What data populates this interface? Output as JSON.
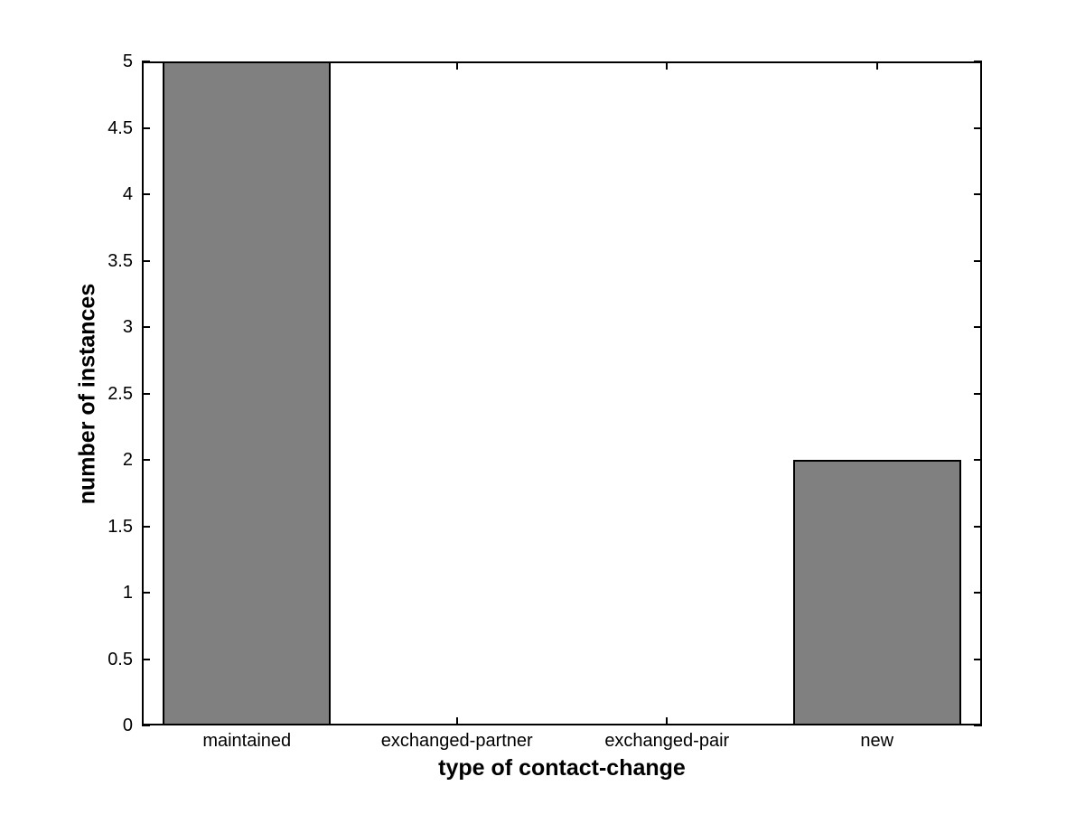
{
  "chart_data": {
    "type": "bar",
    "title": "",
    "categories": [
      "maintained",
      "exchanged-partner",
      "exchanged-pair",
      "new"
    ],
    "values": [
      5,
      0,
      0,
      2
    ],
    "xlabel": "type of contact-change",
    "ylabel": "number of instances",
    "ylim": [
      0,
      5
    ],
    "ytick_step": 0.5,
    "ytick_labels": [
      "0",
      "0.5",
      "1",
      "1.5",
      "2",
      "2.5",
      "3",
      "3.5",
      "4",
      "4.5",
      "5"
    ],
    "bar_width_fraction": 0.8,
    "grid": false,
    "colors": {
      "bar_fill": "#808080",
      "bar_edge": "#000000",
      "axis": "#000000",
      "background": "#ffffff",
      "text": "#000000"
    }
  }
}
